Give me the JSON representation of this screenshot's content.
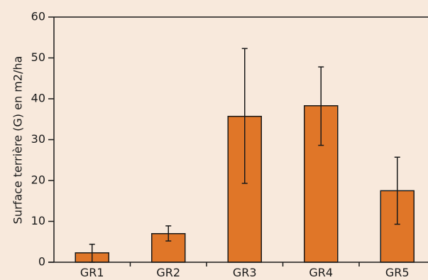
{
  "chart_data": {
    "type": "bar",
    "title": "",
    "xlabel": "",
    "ylabel": "Surface terrière (G) en m2/ha",
    "categories": [
      "GR1",
      "GR2",
      "GR3",
      "GR4",
      "GR5"
    ],
    "values": [
      2.3,
      7.0,
      35.7,
      38.3,
      17.5
    ],
    "error_low": [
      0.0,
      5.2,
      19.3,
      28.6,
      9.3
    ],
    "error_high": [
      4.4,
      8.9,
      52.3,
      47.8,
      25.7
    ],
    "ylim": [
      0,
      60
    ],
    "yticks": [
      0,
      10,
      20,
      30,
      40,
      50,
      60
    ],
    "grid": false,
    "colors": {
      "background": "#f8e9dc",
      "bar_fill": "#e07628",
      "bar_stroke": "#1a1a1a",
      "axis": "#1a1a1a"
    }
  }
}
